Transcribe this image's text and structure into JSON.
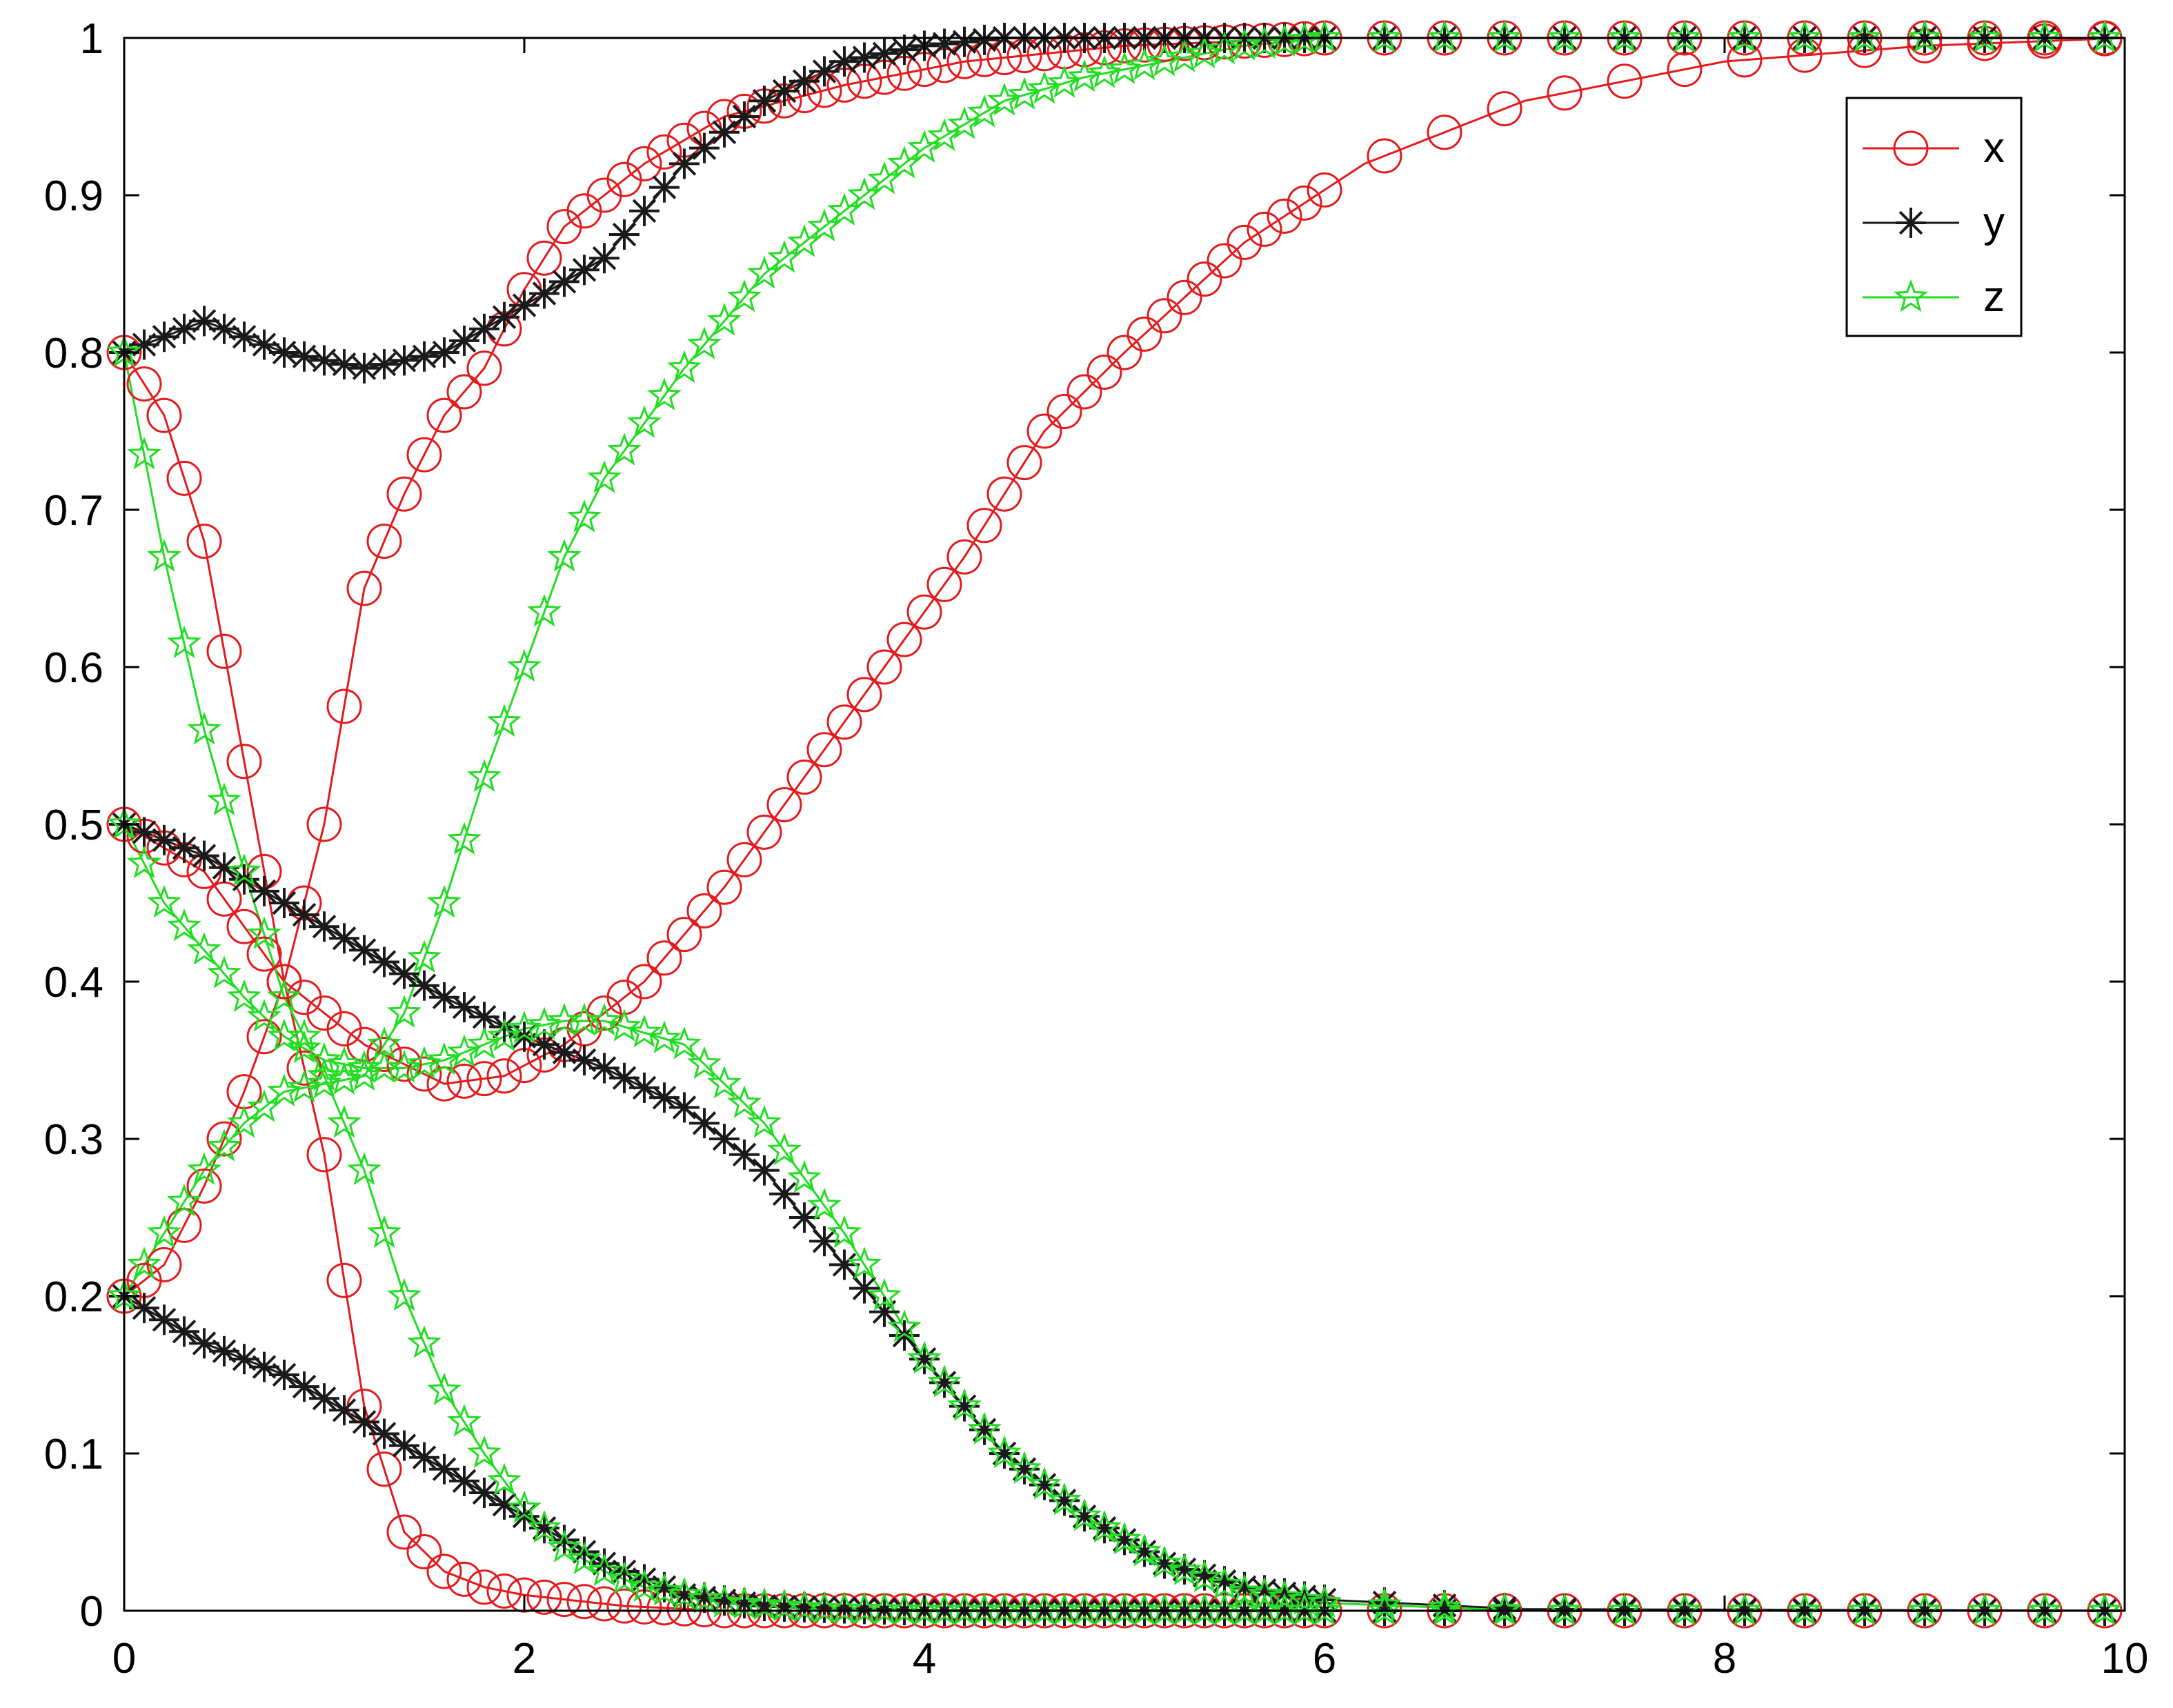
{
  "chart_data": {
    "type": "line",
    "title": "",
    "xlabel": "",
    "ylabel": "",
    "xlim": [
      0,
      10
    ],
    "ylim": [
      0,
      1
    ],
    "grid": false,
    "legend_position": "top-right",
    "x_ticks": [
      "0",
      "2",
      "4",
      "6",
      "8",
      "10"
    ],
    "y_ticks": [
      "0",
      "0.1",
      "0.2",
      "0.3",
      "0.4",
      "0.5",
      "0.6",
      "0.7",
      "0.8",
      "0.9",
      "1"
    ],
    "series": [
      {
        "name": "x",
        "color": "#e41a1c",
        "marker": "circle",
        "curves": [
          {
            "x": [
              0,
              0.2,
              0.4,
              0.6,
              0.8,
              1.0,
              1.2,
              1.4,
              1.6,
              1.8,
              2.0,
              2.5,
              3.0,
              4.0,
              6.0,
              10.0
            ],
            "y": [
              0.8,
              0.76,
              0.68,
              0.54,
              0.4,
              0.29,
              0.13,
              0.05,
              0.025,
              0.015,
              0.01,
              0.003,
              0.0,
              0.0,
              0.0,
              0.0
            ]
          },
          {
            "x": [
              0,
              0.4,
              0.8,
              1.2,
              1.6,
              1.9,
              2.2,
              2.6,
              3.0,
              3.4,
              3.8,
              4.2,
              4.6,
              5.0,
              5.6,
              6.2,
              7.0,
              8.0,
              9.0,
              10.0
            ],
            "y": [
              0.5,
              0.47,
              0.4,
              0.36,
              0.335,
              0.34,
              0.36,
              0.4,
              0.46,
              0.53,
              0.6,
              0.67,
              0.75,
              0.8,
              0.87,
              0.92,
              0.96,
              0.985,
              0.995,
              1.0
            ]
          },
          {
            "x": [
              0,
              0.2,
              0.4,
              0.6,
              0.8,
              1.0,
              1.2,
              1.4,
              1.6,
              1.8,
              2.0,
              2.2,
              2.6,
              3.0,
              3.6,
              4.2,
              5.0,
              6.0,
              10.0
            ],
            "y": [
              0.2,
              0.22,
              0.27,
              0.33,
              0.4,
              0.5,
              0.65,
              0.71,
              0.76,
              0.79,
              0.84,
              0.88,
              0.92,
              0.95,
              0.97,
              0.985,
              0.995,
              1.0,
              1.0
            ]
          }
        ]
      },
      {
        "name": "y",
        "color": "#1a1a1a",
        "marker": "asterisk",
        "curves": [
          {
            "x": [
              0,
              0.4,
              0.8,
              1.2,
              1.6,
              2.0,
              2.4,
              2.8,
              3.2,
              3.6,
              4.0,
              4.4,
              5.0,
              6.0,
              10.0
            ],
            "y": [
              0.8,
              0.82,
              0.8,
              0.79,
              0.8,
              0.83,
              0.86,
              0.92,
              0.96,
              0.985,
              0.995,
              1.0,
              1.0,
              1.0,
              1.0
            ]
          },
          {
            "x": [
              0,
              0.4,
              0.8,
              1.2,
              1.6,
              2.0,
              2.4,
              2.8,
              3.2,
              3.6,
              4.0,
              4.4,
              4.8,
              5.2,
              5.6,
              6.0,
              7.0,
              10.0
            ],
            "y": [
              0.5,
              0.48,
              0.45,
              0.42,
              0.39,
              0.365,
              0.345,
              0.32,
              0.28,
              0.22,
              0.16,
              0.1,
              0.06,
              0.03,
              0.015,
              0.007,
              0.001,
              0.0
            ]
          },
          {
            "x": [
              0,
              0.4,
              0.8,
              1.2,
              1.6,
              2.0,
              2.4,
              2.8,
              3.2,
              4.0,
              5.0,
              10.0
            ],
            "y": [
              0.2,
              0.17,
              0.15,
              0.12,
              0.09,
              0.06,
              0.03,
              0.01,
              0.003,
              0.0,
              0.0,
              0.0
            ]
          }
        ]
      },
      {
        "name": "z",
        "color": "#22dd22",
        "marker": "pentagram",
        "curves": [
          {
            "x": [
              0,
              0.2,
              0.4,
              0.6,
              0.8,
              1.0,
              1.2,
              1.4,
              1.6,
              1.8,
              2.0,
              2.2,
              2.4,
              2.8,
              3.2,
              3.6,
              4.0,
              4.4,
              4.8,
              5.2,
              5.6,
              6.0,
              7.0,
              10.0
            ],
            "y": [
              0.2,
              0.24,
              0.28,
              0.31,
              0.33,
              0.335,
              0.34,
              0.38,
              0.45,
              0.53,
              0.6,
              0.67,
              0.72,
              0.79,
              0.85,
              0.89,
              0.93,
              0.96,
              0.975,
              0.985,
              0.995,
              1.0,
              1.0,
              1.0
            ]
          },
          {
            "x": [
              0,
              0.2,
              0.4,
              0.6,
              0.8,
              1.0,
              1.2,
              1.4,
              1.6,
              1.8,
              2.0,
              2.2,
              2.4,
              2.8,
              3.2,
              3.6,
              4.0,
              4.4,
              4.8,
              5.2,
              5.6,
              6.0,
              7.0,
              10.0
            ],
            "y": [
              0.5,
              0.45,
              0.42,
              0.39,
              0.365,
              0.35,
              0.345,
              0.345,
              0.35,
              0.36,
              0.37,
              0.375,
              0.375,
              0.36,
              0.31,
              0.24,
              0.16,
              0.1,
              0.06,
              0.03,
              0.012,
              0.005,
              0.0,
              0.0
            ]
          },
          {
            "x": [
              0,
              0.2,
              0.4,
              0.6,
              0.8,
              1.0,
              1.2,
              1.4,
              1.6,
              1.8,
              2.0,
              2.2,
              2.4,
              2.6,
              3.0,
              3.5,
              4.0,
              10.0
            ],
            "y": [
              0.8,
              0.67,
              0.56,
              0.47,
              0.39,
              0.34,
              0.28,
              0.2,
              0.14,
              0.1,
              0.065,
              0.04,
              0.025,
              0.015,
              0.005,
              0.001,
              0.0,
              0.0
            ]
          }
        ]
      }
    ]
  }
}
